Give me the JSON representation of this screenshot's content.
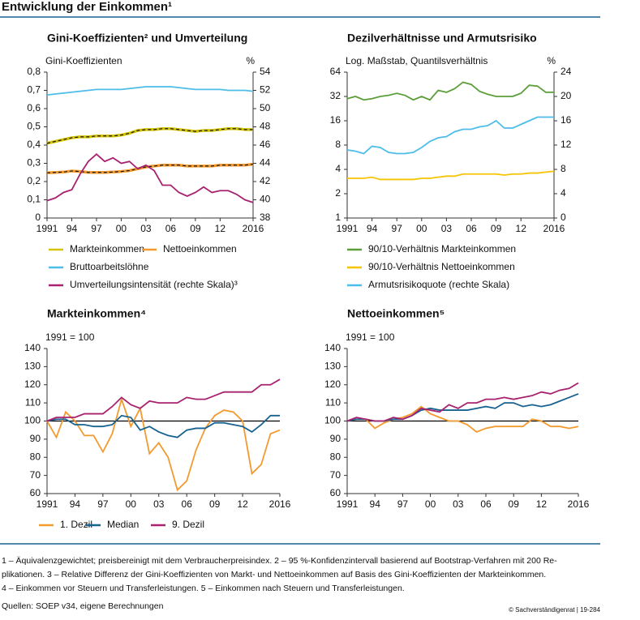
{
  "header": {
    "title": "Entwicklung der Einkommen¹"
  },
  "chart_data": [
    {
      "type": "line",
      "title": "Gini-Koeffizienten² und Umverteilung",
      "ylabel": "Gini-Koeffizienten",
      "y2label": "%",
      "x": [
        1991,
        1992,
        1993,
        1994,
        1995,
        1996,
        1997,
        1998,
        1999,
        2000,
        2001,
        2002,
        2003,
        2004,
        2005,
        2006,
        2007,
        2008,
        2009,
        2010,
        2011,
        2012,
        2013,
        2014,
        2015,
        2016
      ],
      "xlim": [
        1991,
        2016
      ],
      "xticks": [
        1991,
        {
          "value": 1994,
          "label": "94"
        },
        {
          "value": 1997,
          "label": "97"
        },
        {
          "value": 2000,
          "label": "00"
        },
        {
          "value": 2003,
          "label": "03"
        },
        {
          "value": 2006,
          "label": "06"
        },
        {
          "value": 2009,
          "label": "09"
        },
        {
          "value": 2012,
          "label": "12"
        },
        2016
      ],
      "ylim": [
        0,
        0.8
      ],
      "yticks": [
        0,
        {
          "value": 0.1,
          "label": "0,1"
        },
        {
          "value": 0.2,
          "label": "0,2"
        },
        {
          "value": 0.3,
          "label": "0,3"
        },
        {
          "value": 0.4,
          "label": "0,4"
        },
        {
          "value": 0.5,
          "label": "0,5"
        },
        {
          "value": 0.6,
          "label": "0,6"
        },
        {
          "value": 0.7,
          "label": "0,7"
        },
        {
          "value": 0.8,
          "label": "0,8"
        }
      ],
      "y2lim": [
        38,
        54
      ],
      "y2ticks": [
        38,
        40,
        42,
        44,
        46,
        48,
        50,
        52,
        54
      ],
      "series": [
        {
          "name": "Markteinkommen",
          "color": "#d4c300",
          "dash_color": "#1a1a1a",
          "values": [
            0.41,
            0.42,
            0.43,
            0.44,
            0.445,
            0.445,
            0.45,
            0.45,
            0.45,
            0.455,
            0.465,
            0.48,
            0.485,
            0.485,
            0.49,
            0.49,
            0.485,
            0.48,
            0.475,
            0.48,
            0.48,
            0.485,
            0.49,
            0.49,
            0.485,
            0.485
          ]
        },
        {
          "name": "Nettoeinkommen",
          "color": "#f39a2f",
          "dash_color": "#1a1a1a",
          "values": [
            0.248,
            0.25,
            0.252,
            0.258,
            0.255,
            0.25,
            0.25,
            0.25,
            0.252,
            0.255,
            0.26,
            0.27,
            0.28,
            0.285,
            0.29,
            0.29,
            0.29,
            0.285,
            0.285,
            0.285,
            0.285,
            0.29,
            0.29,
            0.29,
            0.29,
            0.295
          ]
        },
        {
          "name": "Bruttoarbeitslöhne",
          "color": "#4dbde9",
          "values": [
            0.675,
            0.68,
            0.685,
            0.69,
            0.695,
            0.7,
            0.705,
            0.705,
            0.705,
            0.705,
            0.71,
            0.715,
            0.72,
            0.72,
            0.72,
            0.72,
            0.715,
            0.71,
            0.705,
            0.705,
            0.705,
            0.705,
            0.7,
            0.7,
            0.7,
            0.695
          ]
        },
        {
          "name": "Umverteilungsintensität (rechte Skala)³",
          "color": "#a8226f",
          "axis": "y2",
          "values": [
            39.9,
            40.2,
            40.8,
            41.1,
            42.8,
            44.2,
            45,
            44.2,
            44.6,
            44,
            44.2,
            43.4,
            43.8,
            43.2,
            41.6,
            41.6,
            40.8,
            40.4,
            40.8,
            41.4,
            40.8,
            41,
            41,
            40.6,
            40,
            39.7
          ]
        }
      ]
    },
    {
      "type": "line",
      "title": "Dezilverhältnisse und Armutsrisiko",
      "ylabel": "Log. Maßstab, Quantilsverhältnis",
      "y2label": "%",
      "log_scale": true,
      "x": [
        1991,
        1992,
        1993,
        1994,
        1995,
        1996,
        1997,
        1998,
        1999,
        2000,
        2001,
        2002,
        2003,
        2004,
        2005,
        2006,
        2007,
        2008,
        2009,
        2010,
        2011,
        2012,
        2013,
        2014,
        2015,
        2016
      ],
      "xlim": [
        1991,
        2016
      ],
      "xticks": [
        1991,
        {
          "value": 1994,
          "label": "94"
        },
        {
          "value": 1997,
          "label": "97"
        },
        {
          "value": 2000,
          "label": "00"
        },
        {
          "value": 2003,
          "label": "03"
        },
        {
          "value": 2006,
          "label": "06"
        },
        {
          "value": 2009,
          "label": "09"
        },
        {
          "value": 2012,
          "label": "12"
        },
        2016
      ],
      "ylim": [
        1,
        64
      ],
      "yticks": [
        1,
        2,
        4,
        8,
        16,
        32,
        64
      ],
      "y2lim": [
        0,
        24
      ],
      "y2ticks": [
        0,
        4,
        8,
        12,
        16,
        20,
        24
      ],
      "series": [
        {
          "name": "90/10-Verhältnis Markteinkommen",
          "color": "#5c9e3a",
          "values": [
            30,
            32,
            29,
            30,
            32,
            33,
            35,
            33,
            29,
            32,
            29,
            38,
            36,
            40,
            48,
            45,
            37,
            34,
            32,
            32,
            32,
            35,
            44,
            43,
            36,
            36
          ]
        },
        {
          "name": "90/10-Verhältnis Nettoeinkommen",
          "color": "#f6c400",
          "values": [
            3.1,
            3.1,
            3.1,
            3.2,
            3.0,
            3.0,
            3.0,
            3.0,
            3.0,
            3.1,
            3.1,
            3.2,
            3.3,
            3.3,
            3.5,
            3.5,
            3.5,
            3.5,
            3.5,
            3.4,
            3.5,
            3.5,
            3.6,
            3.6,
            3.7,
            3.8
          ]
        },
        {
          "name": "Armutsrisikoquote (rechte Skala)",
          "color": "#4dbde9",
          "axis": "y2",
          "values": [
            11.2,
            11,
            10.6,
            11.8,
            11.6,
            10.8,
            10.6,
            10.6,
            10.8,
            11.6,
            12.6,
            13.2,
            13.4,
            14.2,
            14.6,
            14.6,
            15,
            15.2,
            16,
            14.8,
            14.8,
            15.4,
            16,
            16.6,
            16.6,
            16.6
          ]
        }
      ]
    },
    {
      "type": "line",
      "title": "Markteinkommen⁴",
      "ylabel": "1991 = 100",
      "reference_line": 100,
      "x": [
        1991,
        1992,
        1993,
        1994,
        1995,
        1996,
        1997,
        1998,
        1999,
        2000,
        2001,
        2002,
        2003,
        2004,
        2005,
        2006,
        2007,
        2008,
        2009,
        2010,
        2011,
        2012,
        2013,
        2014,
        2015,
        2016
      ],
      "xlim": [
        1991,
        2016
      ],
      "xticks": [
        1991,
        {
          "value": 1994,
          "label": "94"
        },
        {
          "value": 1997,
          "label": "97"
        },
        {
          "value": 2000,
          "label": "00"
        },
        {
          "value": 2003,
          "label": "03"
        },
        {
          "value": 2006,
          "label": "06"
        },
        {
          "value": 2009,
          "label": "09"
        },
        {
          "value": 2012,
          "label": "12"
        },
        2016
      ],
      "ylim": [
        60,
        140
      ],
      "yticks": [
        60,
        70,
        80,
        90,
        100,
        110,
        120,
        130,
        140
      ],
      "series": [
        {
          "name": "1. Dezil",
          "color": "#f39a2f",
          "values": [
            100,
            91,
            105,
            100,
            92,
            92,
            83,
            93,
            112,
            97,
            107,
            82,
            88,
            80,
            62,
            67,
            84,
            96,
            103,
            106,
            105,
            100,
            71,
            76,
            93,
            95
          ]
        },
        {
          "name": "Median",
          "color": "#17628f",
          "values": [
            100,
            101,
            101,
            98,
            98,
            97,
            97,
            98,
            103,
            102,
            95,
            97,
            94,
            92,
            91,
            95,
            96,
            96,
            99,
            99,
            98,
            97,
            94,
            98,
            103,
            103
          ]
        },
        {
          "name": "9. Dezil",
          "color": "#a8226f",
          "values": [
            100,
            102,
            102,
            102,
            104,
            104,
            104,
            108,
            113,
            109,
            107,
            111,
            110,
            110,
            110,
            113,
            112,
            112,
            114,
            116,
            116,
            116,
            116,
            120,
            120,
            123
          ]
        }
      ]
    },
    {
      "type": "line",
      "title": "Nettoeinkommen⁵",
      "ylabel": "1991 = 100",
      "reference_line": 100,
      "x": [
        1991,
        1992,
        1993,
        1994,
        1995,
        1996,
        1997,
        1998,
        1999,
        2000,
        2001,
        2002,
        2003,
        2004,
        2005,
        2006,
        2007,
        2008,
        2009,
        2010,
        2011,
        2012,
        2013,
        2014,
        2015,
        2016
      ],
      "xlim": [
        1991,
        2016
      ],
      "xticks": [
        1991,
        {
          "value": 1994,
          "label": "94"
        },
        {
          "value": 1997,
          "label": "97"
        },
        {
          "value": 2000,
          "label": "00"
        },
        {
          "value": 2003,
          "label": "03"
        },
        {
          "value": 2006,
          "label": "06"
        },
        {
          "value": 2009,
          "label": "09"
        },
        {
          "value": 2012,
          "label": "12"
        },
        2016
      ],
      "ylim": [
        60,
        140
      ],
      "yticks": [
        60,
        70,
        80,
        90,
        100,
        110,
        120,
        130,
        140
      ],
      "series": [
        {
          "color": "#f39a2f",
          "values": [
            100,
            101,
            101,
            96,
            99,
            101,
            102,
            104,
            108,
            104,
            102,
            100,
            100,
            98,
            94,
            96,
            97,
            97,
            97,
            97,
            101,
            100,
            97,
            97,
            96,
            97
          ]
        },
        {
          "color": "#17628f",
          "values": [
            100,
            101,
            101,
            100,
            100,
            101,
            101,
            103,
            106,
            107,
            106,
            106,
            106,
            106,
            107,
            108,
            107,
            110,
            110,
            108,
            109,
            108,
            109,
            111,
            113,
            115
          ]
        },
        {
          "color": "#a8226f",
          "values": [
            100,
            102,
            101,
            100,
            100,
            102,
            101,
            103,
            107,
            106,
            105,
            109,
            107,
            110,
            110,
            112,
            112,
            113,
            112,
            113,
            114,
            116,
            115,
            117,
            118,
            121
          ]
        }
      ]
    }
  ],
  "footnotes": [
    "1 – Äquivalenzgewichtet; preisbereinigt mit dem Verbraucherpreisindex.  2 – 95 %-Konfidenzintervall basierend auf Bootstrap-Verfahren mit 200 Re-",
    "plikationen.  3 – Relative Differenz der Gini-Koeffizienten von Markt- und Nettoeinkommen auf  Basis des Gini-Koeffizienten der Markteinkommen.",
    "4 – Einkommen vor Steuern und Transferleistungen.  5 – Einkommen nach Steuern und Transferleistungen."
  ],
  "source": "Quellen: SOEP v34, eigene Berechnungen",
  "credit": "© Sachverständigenrat | 19-284"
}
